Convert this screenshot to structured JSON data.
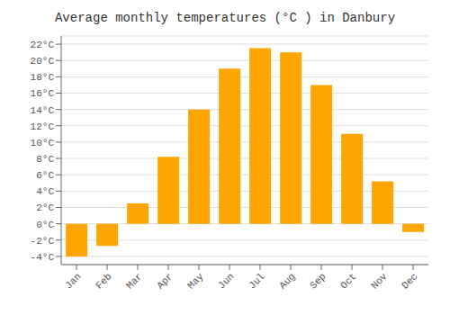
{
  "chart_data": {
    "type": "bar",
    "title": "Average monthly temperatures (°C ) in Danbury",
    "categories": [
      "Jan",
      "Feb",
      "Mar",
      "Apr",
      "May",
      "Jun",
      "Jul",
      "Aug",
      "Sep",
      "Oct",
      "Nov",
      "Dec"
    ],
    "values": [
      -4.0,
      -2.7,
      2.5,
      8.2,
      14.0,
      19.0,
      21.5,
      21.0,
      17.0,
      11.0,
      5.2,
      -1.0
    ],
    "color": "#FFA500",
    "ylim": [
      -5,
      23
    ],
    "yticks": [
      {
        "value": -4,
        "label": "-4°C"
      },
      {
        "value": -2,
        "label": "-2°C"
      },
      {
        "value": 0,
        "label": "0°C"
      },
      {
        "value": 2,
        "label": "2°C"
      },
      {
        "value": 4,
        "label": "4°C"
      },
      {
        "value": 6,
        "label": "6°C"
      },
      {
        "value": 8,
        "label": "8°C"
      },
      {
        "value": 10,
        "label": "10°C"
      },
      {
        "value": 12,
        "label": "12°C"
      },
      {
        "value": 14,
        "label": "14°C"
      },
      {
        "value": 16,
        "label": "16°C"
      },
      {
        "value": 18,
        "label": "18°C"
      },
      {
        "value": 20,
        "label": "20°C"
      },
      {
        "value": 22,
        "label": "22°C"
      }
    ],
    "grid": true
  }
}
